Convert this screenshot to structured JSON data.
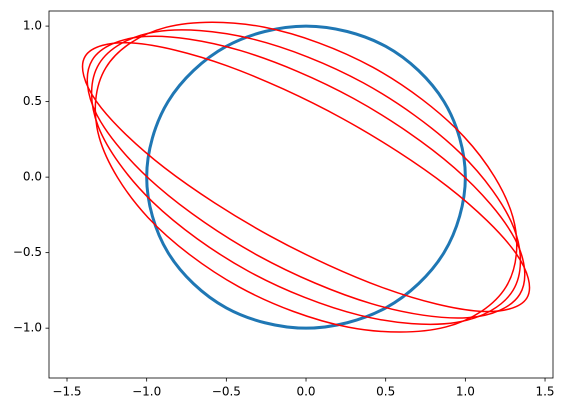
{
  "chart_data": {
    "type": "line",
    "xlim": [
      -1.613,
      1.55
    ],
    "ylim": [
      -1.33,
      1.1
    ],
    "xticks": [
      {
        "value": -1.5,
        "label": "−1.5"
      },
      {
        "value": -1.0,
        "label": "−1.0"
      },
      {
        "value": -0.5,
        "label": "−0.5"
      },
      {
        "value": 0,
        "label": "0.0"
      },
      {
        "value": 0.5,
        "label": "0.5"
      },
      {
        "value": 1.0,
        "label": "1.0"
      },
      {
        "value": 1.5,
        "label": "1.5"
      }
    ],
    "yticks": [
      {
        "value": -1.0,
        "label": "−1.0"
      },
      {
        "value": -0.5,
        "label": "−0.5"
      },
      {
        "value": 0,
        "label": "0.0"
      },
      {
        "value": 0.5,
        "label": "0.5"
      },
      {
        "value": 1.0,
        "label": "1.0"
      }
    ],
    "series": [
      {
        "color": "#1f77b4",
        "x": [
          1,
          0.866,
          0.5,
          0,
          -0.5,
          -0.866,
          -1,
          -0.866,
          -0.5,
          0,
          0.5,
          0.866
        ],
        "y": [
          0,
          0.5,
          0.866,
          1,
          0.866,
          0.5,
          0,
          -0.5,
          -0.866,
          -1,
          -0.866,
          -0.5
        ]
      },
      {
        "color": "#ff0000",
        "x": [
          1.386,
          1.313,
          0.888,
          0.225,
          -0.498,
          -1.087,
          -1.386,
          -1.313,
          -0.888,
          -0.225,
          0.498,
          1.087
        ],
        "y": [
          -0.8,
          -0.498,
          -0.062,
          0.39,
          0.738,
          0.888,
          0.8,
          0.498,
          0.062,
          -0.39,
          -0.738,
          -0.888
        ]
      },
      {
        "color": "#ff0000",
        "x": [
          1.342,
          1.312,
          0.931,
          0.3,
          -0.411,
          -1.012,
          -1.342,
          -1.312,
          -0.931,
          -0.3,
          0.411,
          1.012
        ],
        "y": [
          -0.775,
          -0.411,
          0.062,
          0.52,
          0.838,
          0.931,
          0.775,
          0.411,
          -0.062,
          -0.52,
          -0.838,
          -0.931
        ]
      },
      {
        "color": "#ff0000",
        "x": [
          1.299,
          1.305,
          0.962,
          0.36,
          -0.338,
          -0.945,
          -1.299,
          -1.305,
          -0.962,
          -0.36,
          0.338,
          0.945
        ],
        "y": [
          -0.75,
          -0.338,
          0.165,
          0.624,
          0.915,
          0.962,
          0.75,
          0.338,
          -0.165,
          -0.624,
          -0.915,
          -0.962
        ]
      },
      {
        "color": "#ff0000",
        "x": [
          1.256,
          1.298,
          0.992,
          0.42,
          -0.264,
          -0.878,
          -1.256,
          -1.298,
          -0.992,
          -0.42,
          0.264,
          0.878
        ],
        "y": [
          -0.725,
          -0.264,
          0.267,
          0.727,
          0.993,
          0.992,
          0.725,
          0.264,
          -0.267,
          -0.727,
          -0.993,
          -0.992
        ]
      }
    ]
  }
}
